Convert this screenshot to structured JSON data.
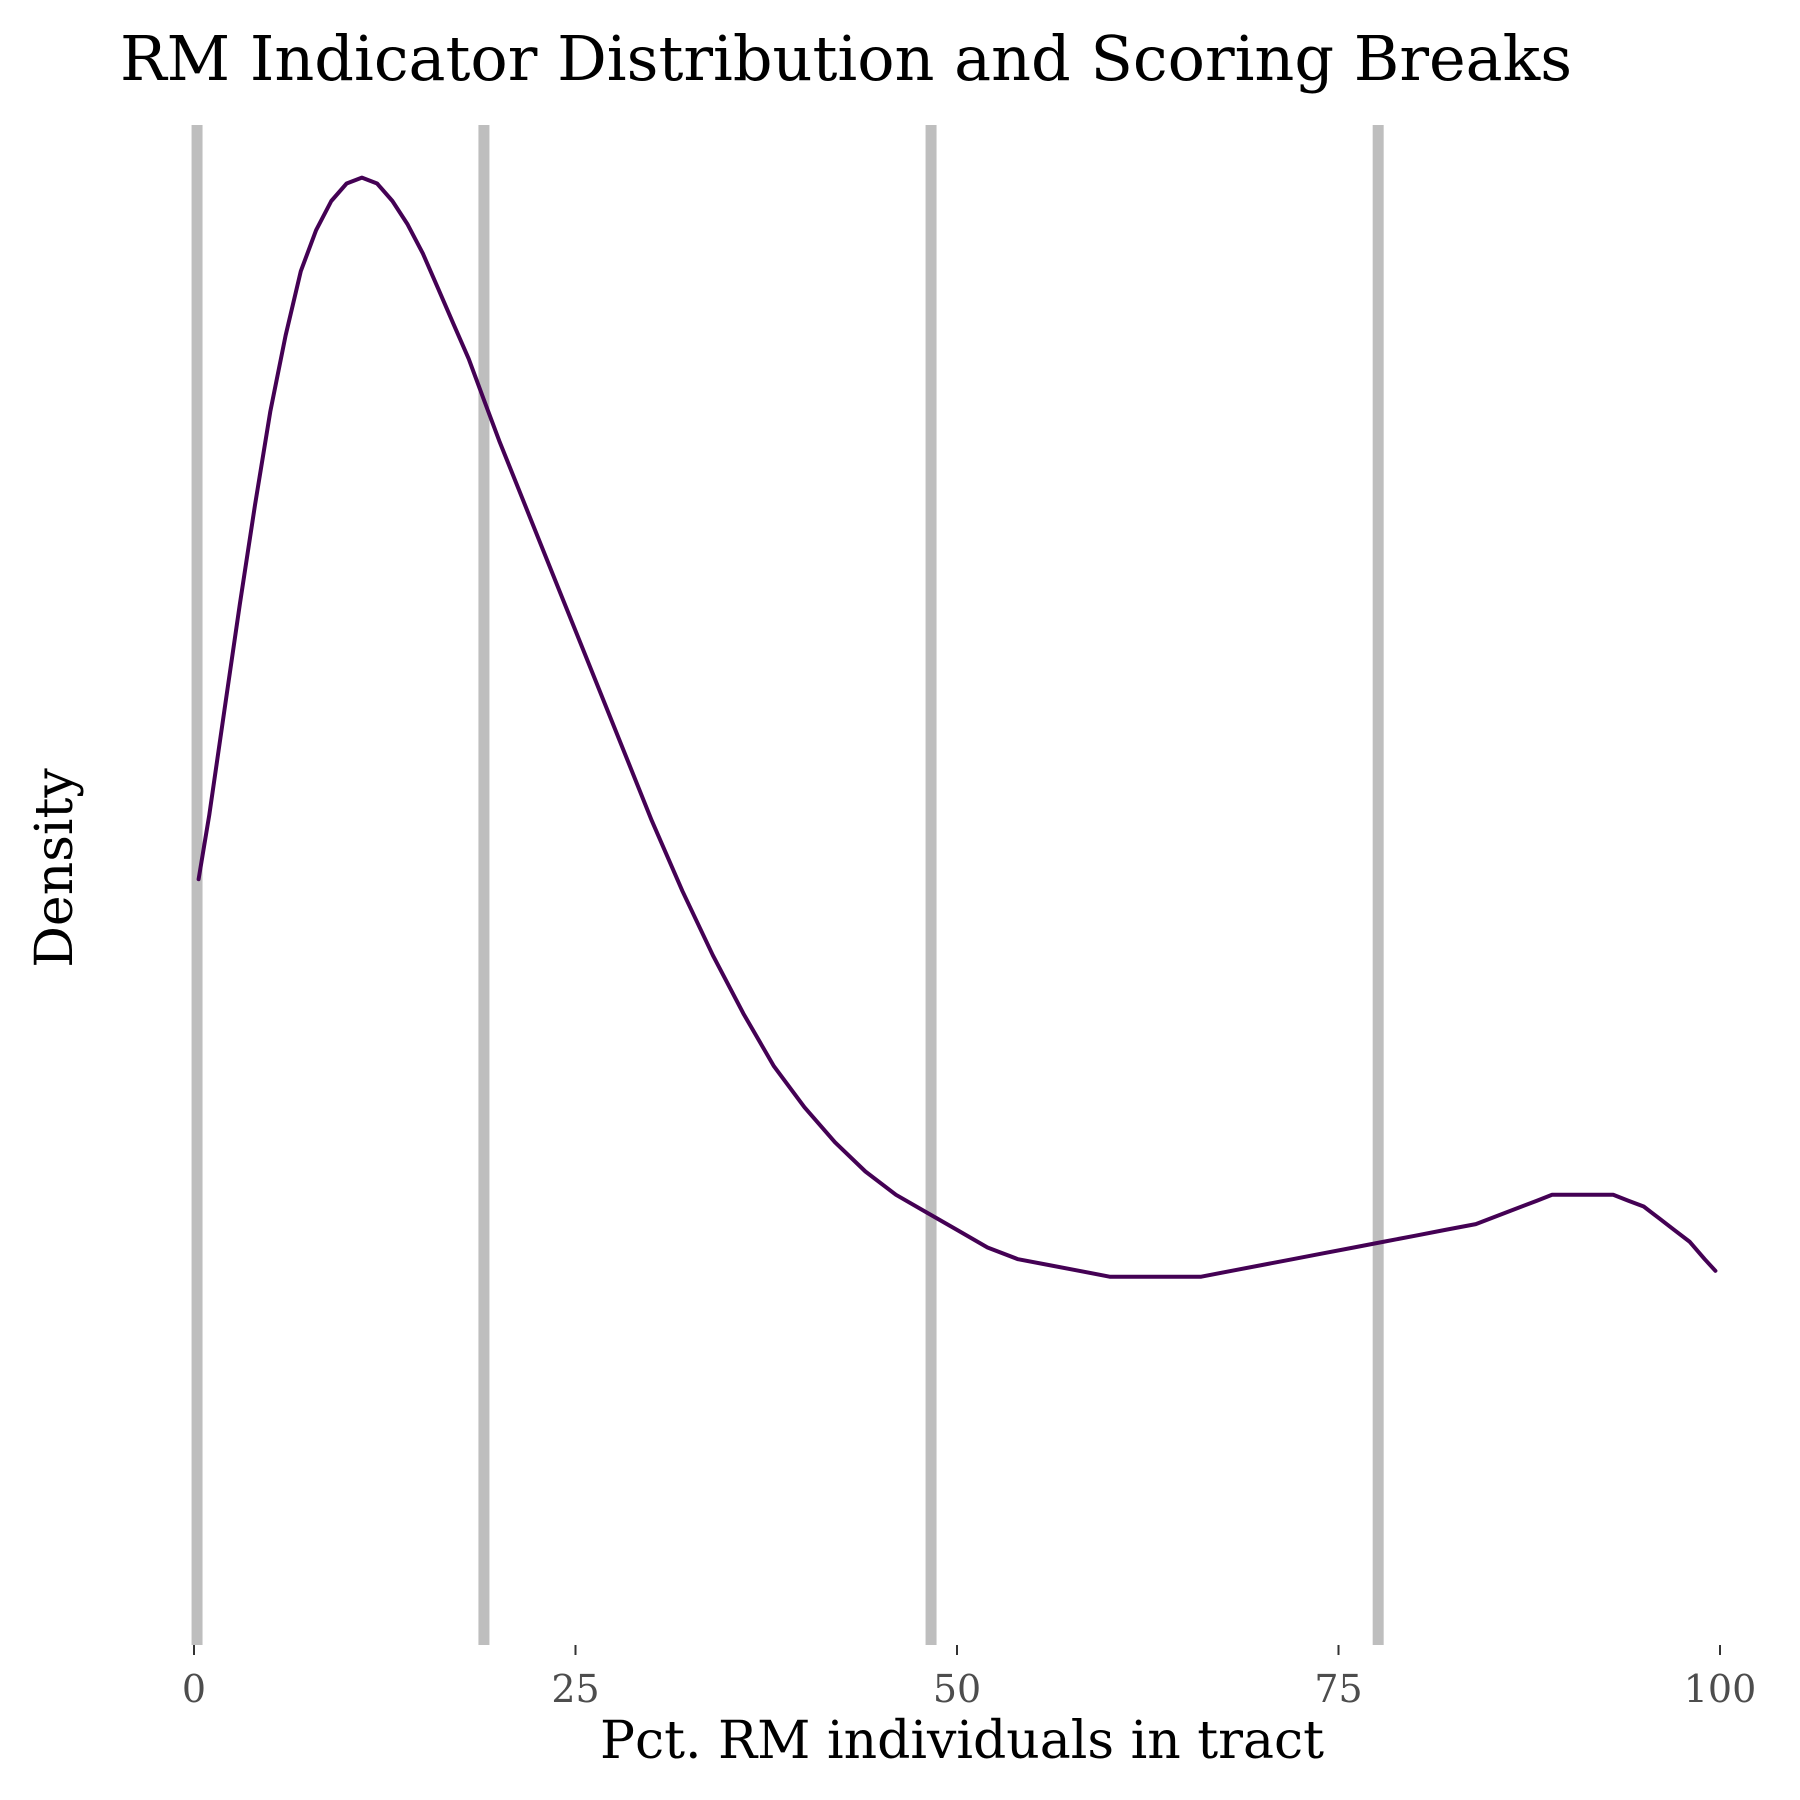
{
  "chart_data": {
    "type": "line",
    "title": "RM Indicator Distribution and Scoring Breaks",
    "xlabel": "Pct. RM individuals in tract",
    "ylabel": "Density",
    "xlim": [
      0,
      100
    ],
    "ylim": [
      0,
      0.026
    ],
    "grid": false,
    "x_ticks": [
      0,
      25,
      50,
      75,
      100
    ],
    "x_tick_labels": [
      "0",
      "25",
      "50",
      "75",
      "100"
    ],
    "y_ticks_shown": false,
    "scoring_breaks": [
      0.2,
      19,
      48.3,
      77.6
    ],
    "colors": {
      "density_line": "#440154",
      "break_lines": "#bebebe",
      "tick_labels": "#4d4d4d"
    },
    "series": [
      {
        "x": [
          0.3,
          1,
          2,
          3,
          4,
          5,
          6,
          7,
          8,
          9,
          10,
          11,
          12,
          13,
          14,
          15,
          16,
          17,
          18,
          19,
          20,
          22,
          24,
          26,
          28,
          30,
          32,
          34,
          36,
          38,
          40,
          42,
          44,
          46,
          48,
          50,
          52,
          54,
          56,
          58,
          60,
          62,
          64,
          66,
          68,
          70,
          72,
          74,
          76,
          78,
          80,
          82,
          84,
          86,
          88,
          89,
          90,
          91,
          92,
          93,
          94,
          95,
          96,
          97,
          98,
          99,
          99.7
        ],
        "values": [
          0.0131,
          0.0142,
          0.016,
          0.0178,
          0.0195,
          0.0211,
          0.0224,
          0.0235,
          0.0242,
          0.0247,
          0.025,
          0.0251,
          0.025,
          0.0247,
          0.0243,
          0.0238,
          0.0232,
          0.0226,
          0.022,
          0.0213,
          0.0206,
          0.0193,
          0.018,
          0.0167,
          0.0154,
          0.0141,
          0.0129,
          0.0118,
          0.0108,
          0.0099,
          0.0092,
          0.0086,
          0.0081,
          0.0077,
          0.0074,
          0.0071,
          0.0068,
          0.0066,
          0.0065,
          0.0064,
          0.0063,
          0.0063,
          0.0063,
          0.0063,
          0.0064,
          0.0065,
          0.0066,
          0.0067,
          0.0068,
          0.0069,
          0.007,
          0.0071,
          0.0072,
          0.0074,
          0.0076,
          0.0077,
          0.0077,
          0.0077,
          0.0077,
          0.0077,
          0.0076,
          0.0075,
          0.0073,
          0.0071,
          0.0069,
          0.0066,
          0.0064
        ]
      }
    ]
  }
}
